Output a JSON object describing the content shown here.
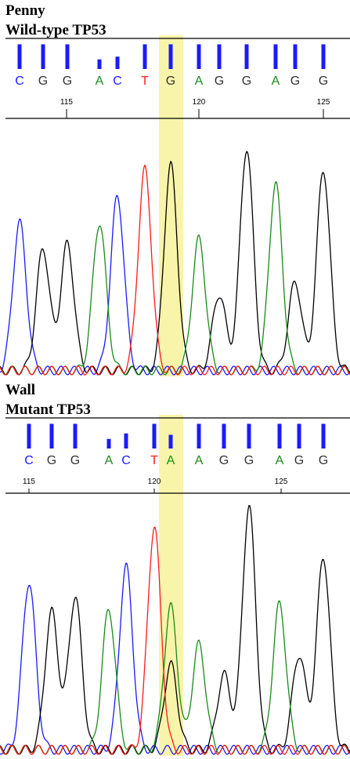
{
  "colors": {
    "A": "#1a8a1a",
    "C": "#1a1aff",
    "G": "#000000",
    "T": "#ff1a1a",
    "base_letter_G": "#333333",
    "quality_bar": "#1a1aff",
    "highlight": "#f5f08c"
  },
  "chart_data": [
    {
      "type": "line",
      "title": "Penny",
      "subtitle": "Wild-type TP53",
      "sequence": [
        "C",
        "G",
        "G",
        "A",
        "C",
        "T",
        "G",
        "A",
        "G",
        "G",
        "A",
        "G",
        "G"
      ],
      "x_ticks": [
        115,
        120,
        125
      ],
      "highlight_base_index": 6,
      "quality_bars": [
        0.9,
        0.9,
        0.9,
        0.35,
        0.45,
        0.9,
        0.9,
        0.9,
        0.9,
        0.9,
        0.9,
        0.9,
        0.9
      ],
      "series": [
        {
          "base": "C",
          "peaks": [
            {
              "pos": 0,
              "height": 0.62
            },
            {
              "pos": 4,
              "height": 0.73
            }
          ]
        },
        {
          "base": "G",
          "peaks": [
            {
              "pos": 1,
              "height": 0.51
            },
            {
              "pos": 2,
              "height": 0.53
            },
            {
              "pos": 6,
              "height": 0.86
            },
            {
              "pos": 8,
              "height": 0.32
            },
            {
              "pos": 9,
              "height": 0.93
            },
            {
              "pos": 11,
              "height": 0.37
            },
            {
              "pos": 12,
              "height": 0.84
            }
          ]
        },
        {
          "base": "A",
          "peaks": [
            {
              "pos": 3,
              "height": 0.62
            },
            {
              "pos": 7,
              "height": 0.55
            },
            {
              "pos": 10,
              "height": 0.78
            }
          ]
        },
        {
          "base": "T",
          "peaks": [
            {
              "pos": 5,
              "height": 0.84
            }
          ]
        }
      ]
    },
    {
      "type": "line",
      "title": "Wall",
      "subtitle": "Mutant TP53",
      "sequence": [
        "C",
        "G",
        "G",
        "A",
        "C",
        "T",
        "A",
        "A",
        "G",
        "G",
        "A",
        "G",
        "G"
      ],
      "x_ticks": [
        115,
        120,
        125
      ],
      "highlight_base_index": 6,
      "quality_bars": [
        0.9,
        0.9,
        0.9,
        0.35,
        0.55,
        0.9,
        0.5,
        0.9,
        0.9,
        0.9,
        0.9,
        0.9,
        0.9
      ],
      "series": [
        {
          "base": "C",
          "peaks": [
            {
              "pos": 0,
              "height": 0.67
            },
            {
              "pos": 4,
              "height": 0.73
            }
          ]
        },
        {
          "base": "G",
          "peaks": [
            {
              "pos": 1,
              "height": 0.55
            },
            {
              "pos": 2,
              "height": 0.61
            },
            {
              "pos": 6,
              "height": 0.34
            },
            {
              "pos": 8,
              "height": 0.3
            },
            {
              "pos": 9,
              "height": 0.97
            },
            {
              "pos": 11,
              "height": 0.38
            },
            {
              "pos": 12,
              "height": 0.77
            }
          ]
        },
        {
          "base": "A",
          "peaks": [
            {
              "pos": 3,
              "height": 0.56
            },
            {
              "pos": 6,
              "height": 0.57
            },
            {
              "pos": 7,
              "height": 0.42
            },
            {
              "pos": 10,
              "height": 0.58
            }
          ]
        },
        {
          "base": "T",
          "peaks": [
            {
              "pos": 5,
              "height": 0.89
            }
          ]
        }
      ]
    }
  ]
}
